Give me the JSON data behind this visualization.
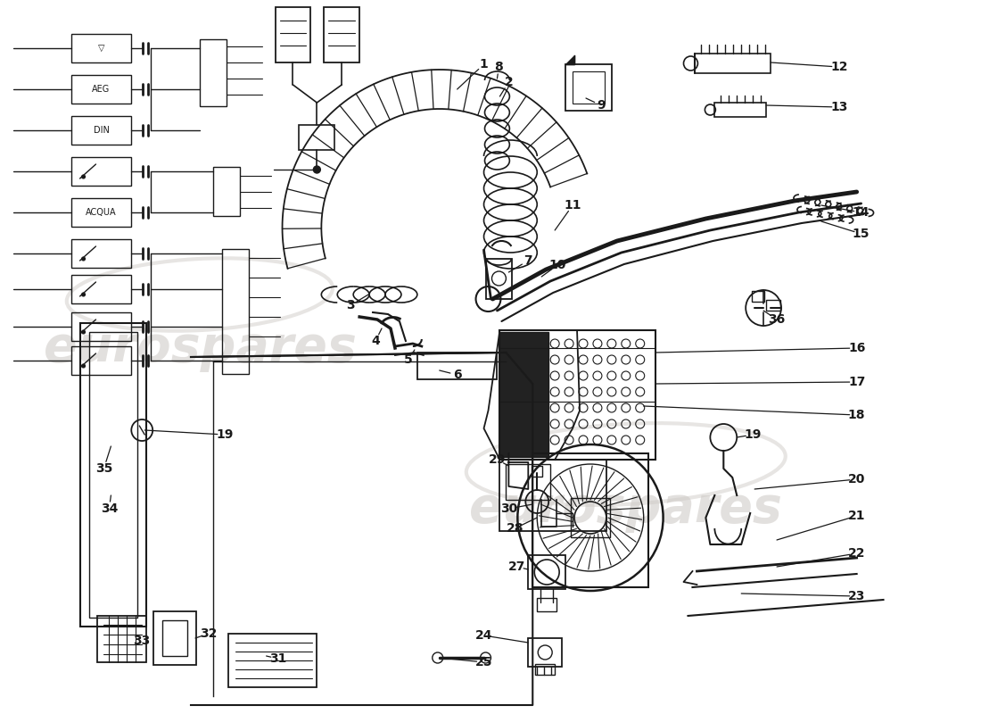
{
  "background_color": "#ffffff",
  "line_color": "#1a1a1a",
  "watermark_text": "eurospares",
  "watermark_color": "#d0ccc8",
  "fig_w": 11.0,
  "fig_h": 8.0,
  "dpi": 100,
  "xlim": [
    0,
    1100
  ],
  "ylim": [
    800,
    0
  ]
}
